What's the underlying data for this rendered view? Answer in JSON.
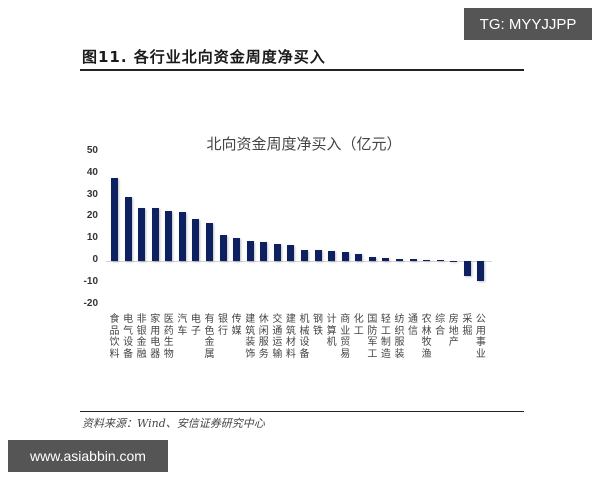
{
  "watermarks": {
    "top_right": "TG: MYYJJPP",
    "bottom_left": "www.asiabbin.com"
  },
  "figure": {
    "title": "图11. 各行业北向资金周度净买入",
    "source": "资料来源：Wind、安信证券研究中心"
  },
  "colors": {
    "bar": "#0d2160"
  },
  "chart_data": {
    "type": "bar",
    "title": "北向资金周度净买入（亿元）",
    "xlabel": "",
    "ylabel": "",
    "ylim": [
      -20,
      50
    ],
    "yticks": [
      50,
      40,
      30,
      20,
      10,
      0,
      -10,
      -20
    ],
    "grid": false,
    "legend": null,
    "categories": [
      "食品饮料",
      "电气设备",
      "非银金融",
      "家用电器",
      "医药生物",
      "汽车",
      "电子",
      "有色金属",
      "银行",
      "传媒",
      "建筑装饰",
      "休闲服务",
      "交通运输",
      "建筑材料",
      "机械设备",
      "钢铁",
      "计算机",
      "商业贸易",
      "化工",
      "国防军工",
      "轻工制造",
      "纺织服装",
      "通信",
      "农林牧渔",
      "综合",
      "房地产",
      "采掘",
      "公用事业"
    ],
    "values": [
      37.9,
      29.2,
      24.2,
      24.2,
      22.8,
      22.3,
      19.1,
      17.3,
      11.8,
      10.5,
      9.0,
      8.7,
      7.7,
      7.3,
      5.0,
      4.9,
      4.6,
      4.1,
      3.1,
      1.8,
      1.2,
      1.1,
      0.9,
      0.5,
      0.1,
      -0.1,
      -6.9,
      -9.0
    ]
  }
}
